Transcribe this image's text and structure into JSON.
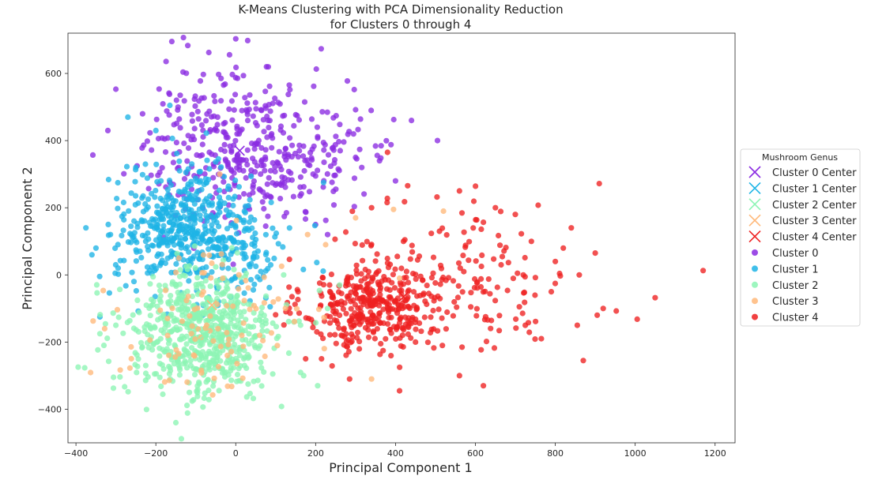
{
  "chart_data": {
    "type": "scatter",
    "title": "K-Means Clustering with PCA Dimensionality Reduction",
    "subtitle": "for Clusters 0 through 4",
    "xlabel": "Principal Component 1",
    "ylabel": "Principal Component 2",
    "xlim": [
      -420,
      1250
    ],
    "ylim": [
      -500,
      720
    ],
    "xticks": [
      -400,
      -200,
      0,
      200,
      400,
      600,
      800,
      1000,
      1200
    ],
    "yticks": [
      -400,
      -200,
      0,
      200,
      400,
      600
    ],
    "grid": false,
    "legend": {
      "title": "Mushroom Genus",
      "placement": "right-outside",
      "center_entries": [
        "Cluster 0 Center",
        "Cluster 1 Center",
        "Cluster 2 Center",
        "Cluster 3 Center",
        "Cluster 4 Center"
      ],
      "point_entries": [
        "Cluster 0",
        "Cluster 1",
        "Cluster 2",
        "Cluster 3",
        "Cluster 4"
      ]
    },
    "colors": [
      "#8b2be2",
      "#1eb4e6",
      "#8cf5b4",
      "#ffb87a",
      "#ee2020"
    ],
    "centers": [
      {
        "x": 10,
        "y": 370
      },
      {
        "x": -120,
        "y": 130
      },
      {
        "x": -80,
        "y": -180
      },
      {
        "x": -60,
        "y": -90
      },
      {
        "x": 420,
        "y": -65
      }
    ],
    "clusters": [
      {
        "blobs": [
          {
            "cx": 20,
            "cy": 360,
            "sx": 130,
            "sy": 100,
            "n": 360
          },
          {
            "cx": 250,
            "cy": 380,
            "sx": 80,
            "sy": 70,
            "n": 40
          },
          {
            "cx": 10,
            "cy": 560,
            "sx": 110,
            "sy": 60,
            "n": 30
          }
        ],
        "points": [
          [
            -160,
            695
          ],
          [
            -120,
            683
          ],
          [
            0,
            703
          ],
          [
            30,
            698
          ],
          [
            -300,
            553
          ],
          [
            300,
            492
          ],
          [
            440,
            460
          ],
          [
            505,
            400
          ],
          [
            -320,
            430
          ],
          [
            400,
            280
          ],
          [
            300,
            350
          ],
          [
            360,
            340
          ],
          [
            200,
            150
          ],
          [
            230,
            120
          ],
          [
            90,
            420
          ]
        ]
      },
      {
        "blobs": [
          {
            "cx": -130,
            "cy": 140,
            "sx": 85,
            "sy": 85,
            "n": 480
          },
          {
            "cx": 30,
            "cy": 60,
            "sx": 70,
            "sy": 60,
            "n": 90
          }
        ],
        "points": [
          [
            -375,
            140
          ],
          [
            -350,
            80
          ],
          [
            -340,
            -125
          ],
          [
            -165,
            505
          ],
          [
            -270,
            470
          ],
          [
            -200,
            430
          ],
          [
            220,
            275
          ],
          [
            -360,
            60
          ],
          [
            -250,
            320
          ]
        ]
      },
      {
        "blobs": [
          {
            "cx": -90,
            "cy": -180,
            "sx": 95,
            "sy": 95,
            "n": 620
          }
        ],
        "points": [
          [
            -330,
            -210
          ],
          [
            -150,
            -440
          ],
          [
            170,
            -300
          ],
          [
            205,
            -330
          ],
          [
            -300,
            -150
          ],
          [
            260,
            -30
          ],
          [
            230,
            -100
          ],
          [
            120,
            0
          ]
        ]
      },
      {
        "blobs": [
          {
            "cx": -60,
            "cy": -150,
            "sx": 120,
            "sy": 110,
            "n": 100
          }
        ],
        "points": [
          [
            -40,
            300
          ],
          [
            395,
            195
          ],
          [
            520,
            190
          ],
          [
            225,
            90
          ],
          [
            410,
            -10
          ],
          [
            180,
            120
          ],
          [
            300,
            170
          ],
          [
            340,
            -310
          ]
        ]
      },
      {
        "blobs": [
          {
            "cx": 340,
            "cy": -90,
            "sx": 85,
            "sy": 70,
            "n": 380
          },
          {
            "cx": 600,
            "cy": 0,
            "sx": 120,
            "sy": 120,
            "n": 130
          }
        ],
        "points": [
          [
            1170,
            13
          ],
          [
            1050,
            -68
          ],
          [
            1005,
            -132
          ],
          [
            920,
            -100
          ],
          [
            905,
            -120
          ],
          [
            910,
            272
          ],
          [
            900,
            65
          ],
          [
            870,
            -255
          ],
          [
            855,
            -150
          ],
          [
            860,
            0
          ],
          [
            840,
            140
          ],
          [
            820,
            80
          ],
          [
            800,
            40
          ],
          [
            790,
            -50
          ],
          [
            765,
            -190
          ],
          [
            740,
            100
          ],
          [
            720,
            0
          ],
          [
            560,
            250
          ],
          [
            650,
            200
          ],
          [
            700,
            180
          ],
          [
            620,
            -330
          ],
          [
            560,
            -300
          ],
          [
            450,
            -200
          ],
          [
            410,
            -345
          ],
          [
            380,
            365
          ],
          [
            285,
            -310
          ],
          [
            175,
            -250
          ],
          [
            420,
            100
          ],
          [
            510,
            130
          ],
          [
            340,
            200
          ]
        ]
      }
    ]
  }
}
